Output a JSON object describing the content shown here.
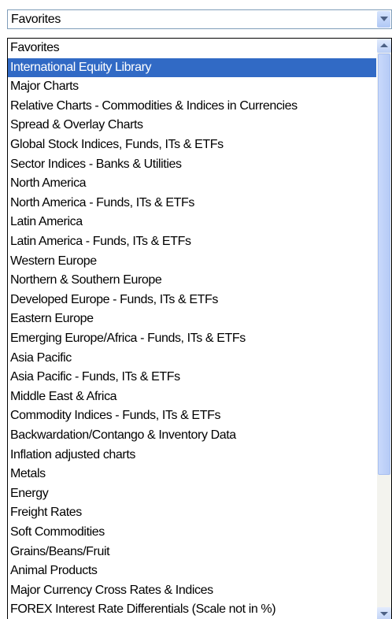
{
  "combo": {
    "value": "Favorites"
  },
  "list": {
    "selected": 1,
    "items": [
      "Favorites",
      "International Equity Library",
      "Major Charts",
      "Relative Charts - Commodities & Indices in Currencies",
      "Spread & Overlay Charts",
      "Global Stock Indices, Funds, ITs & ETFs",
      "Sector Indices - Banks & Utilities",
      "North America",
      "North America - Funds, ITs & ETFs",
      "Latin America",
      "Latin America - Funds, ITs & ETFs",
      "Western Europe",
      "Northern & Southern Europe",
      "Developed Europe - Funds, ITs & ETFs",
      "Eastern Europe",
      "Emerging Europe/Africa - Funds, ITs & ETFs",
      "Asia Pacific",
      "Asia Pacific - Funds, ITs & ETFs",
      "Middle East & Africa",
      "Commodity Indices - Funds, ITs & ETFs",
      "Backwardation/Contango & Inventory Data",
      "Inflation adjusted charts",
      "Metals",
      "Energy",
      "Freight Rates",
      "Soft Commodities",
      "Grains/Beans/Fruit",
      "Animal Products",
      "Major Currency Cross Rates & Indices",
      "FOREX Interest Rate Differentials (Scale not in %)"
    ]
  }
}
